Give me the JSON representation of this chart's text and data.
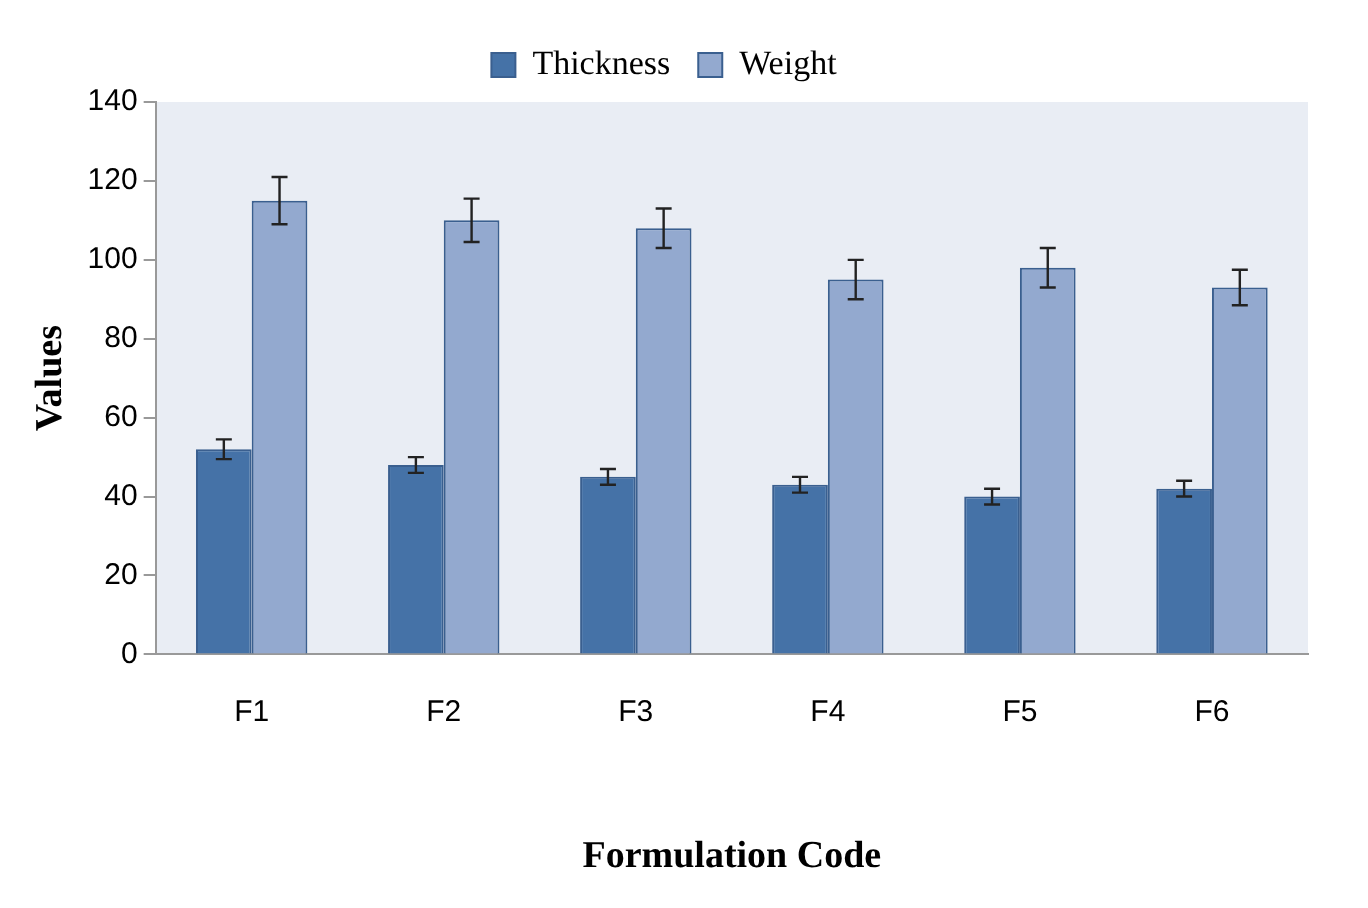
{
  "chart_data": {
    "type": "bar",
    "xlabel": "Formulation Code",
    "ylabel": "Values",
    "categories": [
      "F1",
      "F2",
      "F3",
      "F4",
      "F5",
      "F6"
    ],
    "series": [
      {
        "name": "Thickness",
        "color": "#4572a7",
        "values": [
          52,
          48,
          45,
          43,
          40,
          42
        ],
        "errors": [
          2.5,
          2,
          2,
          2,
          2,
          2
        ]
      },
      {
        "name": "Weight",
        "color": "#93a9cf",
        "values": [
          115,
          110,
          108,
          95,
          98,
          93
        ],
        "errors": [
          6,
          5.5,
          5,
          5,
          5,
          4.5
        ]
      }
    ],
    "ylim": [
      0,
      140
    ],
    "yticks": [
      0,
      20,
      40,
      60,
      80,
      100,
      120,
      140
    ],
    "grid": false,
    "legend": "top"
  }
}
